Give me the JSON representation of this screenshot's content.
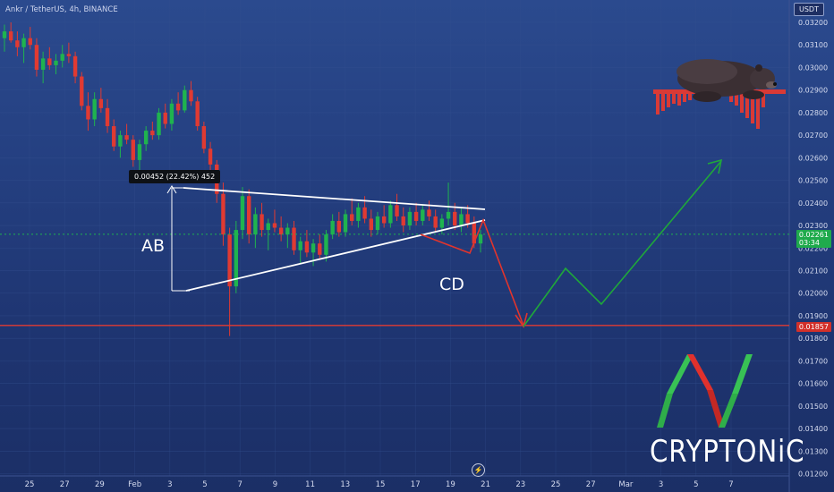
{
  "header": {
    "title": "Ankr / TetherUS, 4h, BINANCE",
    "unit_button": "USDT"
  },
  "annotations": {
    "ab_label": "AB",
    "cd_label": "CD",
    "measure": "0.00452 (22.42%) 452"
  },
  "price_tags": {
    "current": "0.02261",
    "current_sub": "03:34",
    "support": "0.01857"
  },
  "brand": {
    "text": "CRYPTONiC"
  },
  "colors": {
    "bull": "#1fb34f",
    "bear": "#e03a32",
    "support_line": "#e13b33",
    "triangle": "#ffffff",
    "path_down": "#e2342c",
    "path_up": "#1fa83a",
    "current_price_line": "#1fb34f"
  },
  "icons": {
    "replay": "lightning-icon"
  },
  "chart_data": {
    "type": "candlestick",
    "title": "Ankr / TetherUS, 4h, BINANCE",
    "ylim": [
      0.0119,
      0.0328
    ],
    "y_ticks": [
      "0.03200",
      "0.03100",
      "0.03000",
      "0.02900",
      "0.02800",
      "0.02700",
      "0.02600",
      "0.02500",
      "0.02400",
      "0.02300",
      "0.02200",
      "0.02100",
      "0.02000",
      "0.01900",
      "0.01800",
      "0.01700",
      "0.01600",
      "0.01500",
      "0.01400",
      "0.01300",
      "0.01200"
    ],
    "x_ticks": [
      "25",
      "27",
      "29",
      "Feb",
      "3",
      "5",
      "7",
      "9",
      "11",
      "13",
      "15",
      "17",
      "19",
      "21",
      "23",
      "25",
      "27",
      "Mar",
      "3",
      "5",
      "7"
    ],
    "candles": [
      [
        0.0313,
        0.0319,
        0.0307,
        0.0316
      ],
      [
        0.0316,
        0.032,
        0.0311,
        0.0312
      ],
      [
        0.0312,
        0.0316,
        0.0305,
        0.0309
      ],
      [
        0.0309,
        0.0315,
        0.0302,
        0.0313
      ],
      [
        0.0313,
        0.0318,
        0.0308,
        0.031
      ],
      [
        0.031,
        0.0313,
        0.0296,
        0.0299
      ],
      [
        0.0299,
        0.0307,
        0.0293,
        0.0304
      ],
      [
        0.0304,
        0.0309,
        0.0299,
        0.0301
      ],
      [
        0.0301,
        0.0306,
        0.0297,
        0.0303
      ],
      [
        0.0303,
        0.031,
        0.03,
        0.0306
      ],
      [
        0.0306,
        0.0311,
        0.0302,
        0.0305
      ],
      [
        0.0305,
        0.0307,
        0.0293,
        0.0296
      ],
      [
        0.0296,
        0.0298,
        0.0281,
        0.0283
      ],
      [
        0.0283,
        0.0289,
        0.0272,
        0.0277
      ],
      [
        0.0277,
        0.0289,
        0.0274,
        0.0286
      ],
      [
        0.0286,
        0.0291,
        0.028,
        0.0282
      ],
      [
        0.0282,
        0.0286,
        0.0271,
        0.0274
      ],
      [
        0.0274,
        0.0277,
        0.0263,
        0.0265
      ],
      [
        0.0265,
        0.0272,
        0.026,
        0.027
      ],
      [
        0.027,
        0.0275,
        0.0266,
        0.0268
      ],
      [
        0.0268,
        0.027,
        0.0256,
        0.0259
      ],
      [
        0.0259,
        0.0268,
        0.0254,
        0.0266
      ],
      [
        0.0266,
        0.0274,
        0.0263,
        0.0272
      ],
      [
        0.0272,
        0.0276,
        0.0268,
        0.027
      ],
      [
        0.027,
        0.0282,
        0.0268,
        0.028
      ],
      [
        0.028,
        0.0284,
        0.0273,
        0.0275
      ],
      [
        0.0275,
        0.0286,
        0.0272,
        0.0284
      ],
      [
        0.0284,
        0.0289,
        0.0279,
        0.0281
      ],
      [
        0.0281,
        0.0292,
        0.028,
        0.029
      ],
      [
        0.029,
        0.0294,
        0.0283,
        0.0285
      ],
      [
        0.0285,
        0.0287,
        0.0272,
        0.0274
      ],
      [
        0.0274,
        0.0276,
        0.0262,
        0.0264
      ],
      [
        0.0264,
        0.0267,
        0.0254,
        0.0257
      ],
      [
        0.0257,
        0.0259,
        0.024,
        0.0244
      ],
      [
        0.0244,
        0.0249,
        0.0221,
        0.0226
      ],
      [
        0.0226,
        0.0229,
        0.0181,
        0.0203
      ],
      [
        0.0203,
        0.0232,
        0.02,
        0.0228
      ],
      [
        0.0228,
        0.0247,
        0.0224,
        0.0243
      ],
      [
        0.0243,
        0.0246,
        0.0222,
        0.0226
      ],
      [
        0.0226,
        0.0238,
        0.022,
        0.0235
      ],
      [
        0.0235,
        0.024,
        0.0225,
        0.0228
      ],
      [
        0.0228,
        0.0233,
        0.0219,
        0.0231
      ],
      [
        0.0231,
        0.0237,
        0.0227,
        0.0229
      ],
      [
        0.0229,
        0.0234,
        0.0223,
        0.0226
      ],
      [
        0.0226,
        0.0231,
        0.022,
        0.0229
      ],
      [
        0.0229,
        0.0232,
        0.0217,
        0.0219
      ],
      [
        0.0219,
        0.0225,
        0.0213,
        0.0223
      ],
      [
        0.0223,
        0.0228,
        0.0216,
        0.0218
      ],
      [
        0.0218,
        0.0224,
        0.0212,
        0.0222
      ],
      [
        0.0222,
        0.0226,
        0.0215,
        0.0217
      ],
      [
        0.0217,
        0.0228,
        0.0214,
        0.0226
      ],
      [
        0.0226,
        0.0235,
        0.0224,
        0.0232
      ],
      [
        0.0232,
        0.0236,
        0.0225,
        0.0227
      ],
      [
        0.0227,
        0.0237,
        0.0225,
        0.0235
      ],
      [
        0.0235,
        0.0242,
        0.023,
        0.0232
      ],
      [
        0.0232,
        0.024,
        0.0229,
        0.0238
      ],
      [
        0.0238,
        0.0243,
        0.0231,
        0.0233
      ],
      [
        0.0233,
        0.0237,
        0.0225,
        0.0228
      ],
      [
        0.0228,
        0.0236,
        0.0226,
        0.0234
      ],
      [
        0.0234,
        0.0239,
        0.0229,
        0.0231
      ],
      [
        0.0231,
        0.0241,
        0.0229,
        0.0239
      ],
      [
        0.0239,
        0.0244,
        0.0232,
        0.0234
      ],
      [
        0.0234,
        0.0238,
        0.0227,
        0.023
      ],
      [
        0.023,
        0.0238,
        0.0228,
        0.0236
      ],
      [
        0.0236,
        0.024,
        0.023,
        0.0232
      ],
      [
        0.0232,
        0.0239,
        0.023,
        0.0237
      ],
      [
        0.0237,
        0.0241,
        0.0232,
        0.0234
      ],
      [
        0.0234,
        0.0237,
        0.0227,
        0.0229
      ],
      [
        0.0229,
        0.0235,
        0.0226,
        0.0233
      ],
      [
        0.0233,
        0.0249,
        0.023,
        0.0236
      ],
      [
        0.0236,
        0.024,
        0.0228,
        0.023
      ],
      [
        0.023,
        0.0238,
        0.0227,
        0.0235
      ],
      [
        0.0235,
        0.0239,
        0.0229,
        0.0231
      ],
      [
        0.0231,
        0.0234,
        0.022,
        0.0222
      ],
      [
        0.0222,
        0.0228,
        0.0218,
        0.0226
      ]
    ],
    "lines": [
      {
        "name": "support",
        "y": 0.01857
      }
    ]
  }
}
